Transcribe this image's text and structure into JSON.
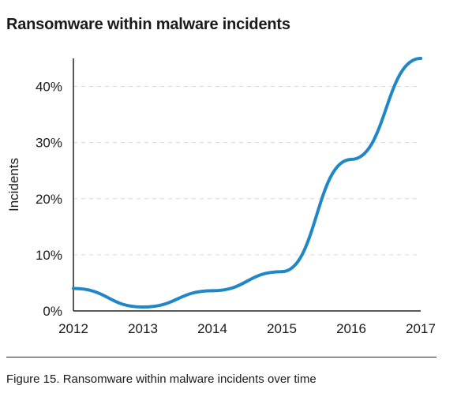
{
  "chart_data": {
    "type": "line",
    "title": "Ransomware within malware incidents",
    "ylabel": "Incidents",
    "xlabel": "",
    "x": [
      2012,
      2013,
      2014,
      2015,
      2016,
      2017
    ],
    "series": [
      {
        "values": [
          4,
          0.7,
          3.6,
          7,
          27,
          45
        ],
        "color": "#1f87c8"
      }
    ],
    "x_ticks": [
      "2012",
      "2013",
      "2014",
      "2015",
      "2016",
      "2017"
    ],
    "y_ticks": [
      0,
      10,
      20,
      30,
      40
    ],
    "y_tick_labels": [
      "0%",
      "10%",
      "20%",
      "30%",
      "40%"
    ],
    "ylim": [
      0,
      45
    ],
    "xlim": [
      2012,
      2017
    ],
    "grid": "horizontal-dashed",
    "legend": "none"
  },
  "caption": "Figure 15.  Ransomware within malware incidents over time"
}
